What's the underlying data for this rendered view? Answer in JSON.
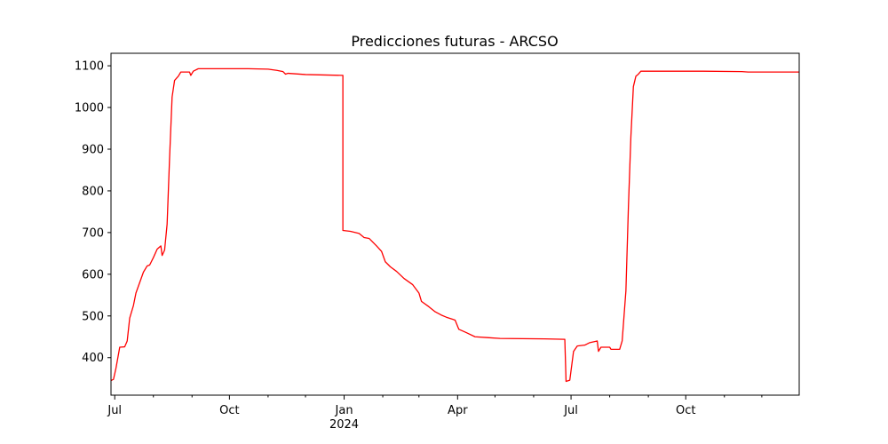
{
  "chart_data": {
    "type": "line",
    "title": "Predicciones futuras - ARCSO",
    "xlabel": "",
    "ylabel": "",
    "grid": false,
    "colors": {
      "line": "#ff0000",
      "axis": "#000000",
      "background": "#ffffff"
    },
    "x_range": [
      "2023-06-28",
      "2024-12-31"
    ],
    "ylim": [
      310,
      1130
    ],
    "x_ticks": [
      {
        "date": "2023-07-01",
        "label": "Jul",
        "sublabel": ""
      },
      {
        "date": "2023-10-01",
        "label": "Oct",
        "sublabel": ""
      },
      {
        "date": "2024-01-01",
        "label": "Jan",
        "sublabel": "2024"
      },
      {
        "date": "2024-04-01",
        "label": "Apr",
        "sublabel": ""
      },
      {
        "date": "2024-07-01",
        "label": "Jul",
        "sublabel": ""
      },
      {
        "date": "2024-10-01",
        "label": "Oct",
        "sublabel": ""
      }
    ],
    "x_minor_ticks": [
      "2023-08-01",
      "2023-09-01",
      "2023-11-01",
      "2023-12-01",
      "2024-02-01",
      "2024-03-01",
      "2024-05-01",
      "2024-06-01",
      "2024-08-01",
      "2024-09-01",
      "2024-11-01",
      "2024-12-01"
    ],
    "y_ticks": [
      400,
      500,
      600,
      700,
      800,
      900,
      1000,
      1100
    ],
    "series": [
      {
        "values": [
          [
            "2023-06-28",
            345
          ],
          [
            "2023-06-30",
            348
          ],
          [
            "2023-07-02",
            375
          ],
          [
            "2023-07-05",
            425
          ],
          [
            "2023-07-09",
            426
          ],
          [
            "2023-07-11",
            440
          ],
          [
            "2023-07-13",
            495
          ],
          [
            "2023-07-16",
            525
          ],
          [
            "2023-07-18",
            555
          ],
          [
            "2023-07-21",
            580
          ],
          [
            "2023-07-24",
            605
          ],
          [
            "2023-07-27",
            620
          ],
          [
            "2023-07-29",
            622
          ],
          [
            "2023-08-01",
            640
          ],
          [
            "2023-08-04",
            660
          ],
          [
            "2023-08-07",
            668
          ],
          [
            "2023-08-08",
            645
          ],
          [
            "2023-08-10",
            658
          ],
          [
            "2023-08-12",
            720
          ],
          [
            "2023-08-14",
            880
          ],
          [
            "2023-08-16",
            1025
          ],
          [
            "2023-08-18",
            1065
          ],
          [
            "2023-08-21",
            1075
          ],
          [
            "2023-08-23",
            1085
          ],
          [
            "2023-08-30",
            1085
          ],
          [
            "2023-08-31",
            1077
          ],
          [
            "2023-09-02",
            1087
          ],
          [
            "2023-09-06",
            1093
          ],
          [
            "2023-10-16",
            1093
          ],
          [
            "2023-11-01",
            1092
          ],
          [
            "2023-11-08",
            1089
          ],
          [
            "2023-11-13",
            1086
          ],
          [
            "2023-11-15",
            1080
          ],
          [
            "2023-11-17",
            1082
          ],
          [
            "2023-12-01",
            1079
          ],
          [
            "2023-12-31",
            1077
          ],
          [
            "2023-12-31",
            705
          ],
          [
            "2024-01-06",
            703
          ],
          [
            "2024-01-13",
            698
          ],
          [
            "2024-01-17",
            688
          ],
          [
            "2024-01-21",
            686
          ],
          [
            "2024-01-27",
            668
          ],
          [
            "2024-01-31",
            655
          ],
          [
            "2024-02-03",
            630
          ],
          [
            "2024-02-07",
            618
          ],
          [
            "2024-02-12",
            607
          ],
          [
            "2024-02-18",
            590
          ],
          [
            "2024-02-25",
            575
          ],
          [
            "2024-03-01",
            555
          ],
          [
            "2024-03-03",
            535
          ],
          [
            "2024-03-09",
            522
          ],
          [
            "2024-03-14",
            510
          ],
          [
            "2024-03-19",
            502
          ],
          [
            "2024-03-23",
            497
          ],
          [
            "2024-03-30",
            490
          ],
          [
            "2024-04-02",
            468
          ],
          [
            "2024-04-08",
            460
          ],
          [
            "2024-04-15",
            450
          ],
          [
            "2024-04-25",
            448
          ],
          [
            "2024-05-05",
            446
          ],
          [
            "2024-06-10",
            445
          ],
          [
            "2024-06-26",
            444
          ],
          [
            "2024-06-27",
            343
          ],
          [
            "2024-06-30",
            346
          ],
          [
            "2024-07-03",
            415
          ],
          [
            "2024-07-06",
            428
          ],
          [
            "2024-07-12",
            430
          ],
          [
            "2024-07-16",
            436
          ],
          [
            "2024-07-22",
            440
          ],
          [
            "2024-07-23",
            415
          ],
          [
            "2024-07-25",
            425
          ],
          [
            "2024-08-01",
            425
          ],
          [
            "2024-08-02",
            420
          ],
          [
            "2024-08-09",
            420
          ],
          [
            "2024-08-11",
            440
          ],
          [
            "2024-08-14",
            560
          ],
          [
            "2024-08-16",
            760
          ],
          [
            "2024-08-18",
            930
          ],
          [
            "2024-08-20",
            1050
          ],
          [
            "2024-08-22",
            1075
          ],
          [
            "2024-08-24",
            1080
          ],
          [
            "2024-08-26",
            1087
          ],
          [
            "2024-10-15",
            1087
          ],
          [
            "2024-11-15",
            1086
          ],
          [
            "2024-11-20",
            1085
          ],
          [
            "2024-12-31",
            1085
          ]
        ]
      }
    ]
  }
}
